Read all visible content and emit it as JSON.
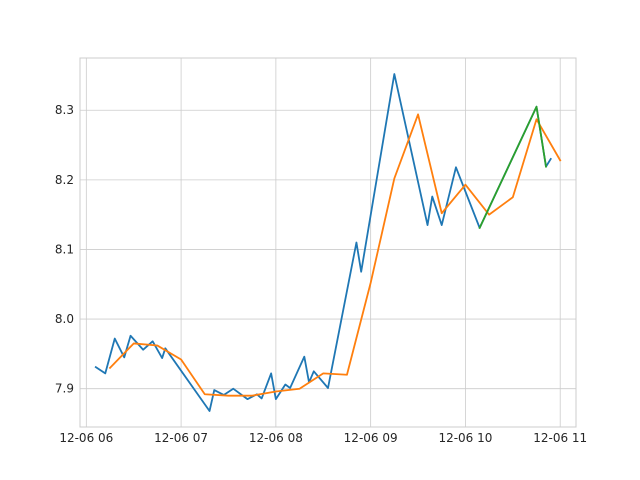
{
  "chart_data": {
    "type": "line",
    "title": "",
    "xlabel": "",
    "ylabel": "",
    "grid": true,
    "xlim": [
      "2023-12-06 05:56",
      "2023-12-06 11:10"
    ],
    "ylim": [
      7.845,
      8.375
    ],
    "x_ticks": [
      {
        "value": "2023-12-06 06:00",
        "label": "12-06 06"
      },
      {
        "value": "2023-12-06 07:00",
        "label": "12-06 07"
      },
      {
        "value": "2023-12-06 08:00",
        "label": "12-06 08"
      },
      {
        "value": "2023-12-06 09:00",
        "label": "12-06 09"
      },
      {
        "value": "2023-12-06 10:00",
        "label": "12-06 10"
      },
      {
        "value": "2023-12-06 11:00",
        "label": "12-06 11"
      }
    ],
    "y_ticks": [
      {
        "value": 7.9,
        "label": "7.9"
      },
      {
        "value": 8.0,
        "label": "8.0"
      },
      {
        "value": 8.1,
        "label": "8.1"
      },
      {
        "value": 8.2,
        "label": "8.2"
      },
      {
        "value": 8.3,
        "label": "8.3"
      }
    ],
    "series": [
      {
        "color": "#1f77b4",
        "points": [
          [
            "2023-12-06 06:06",
            7.931
          ],
          [
            "2023-12-06 06:12",
            7.922
          ],
          [
            "2023-12-06 06:18",
            7.972
          ],
          [
            "2023-12-06 06:24",
            7.945
          ],
          [
            "2023-12-06 06:28",
            7.976
          ],
          [
            "2023-12-06 06:36",
            7.956
          ],
          [
            "2023-12-06 06:42",
            7.968
          ],
          [
            "2023-12-06 06:48",
            7.944
          ],
          [
            "2023-12-06 06:50",
            7.958
          ],
          [
            "2023-12-06 07:18",
            7.868
          ],
          [
            "2023-12-06 07:21",
            7.898
          ],
          [
            "2023-12-06 07:27",
            7.891
          ],
          [
            "2023-12-06 07:33",
            7.9
          ],
          [
            "2023-12-06 07:42",
            7.885
          ],
          [
            "2023-12-06 07:48",
            7.892
          ],
          [
            "2023-12-06 07:51",
            7.886
          ],
          [
            "2023-12-06 07:57",
            7.922
          ],
          [
            "2023-12-06 08:00",
            7.885
          ],
          [
            "2023-12-06 08:06",
            7.906
          ],
          [
            "2023-12-06 08:09",
            7.901
          ],
          [
            "2023-12-06 08:18",
            7.946
          ],
          [
            "2023-12-06 08:21",
            7.909
          ],
          [
            "2023-12-06 08:24",
            7.925
          ],
          [
            "2023-12-06 08:33",
            7.901
          ],
          [
            "2023-12-06 08:51",
            8.11
          ],
          [
            "2023-12-06 08:54",
            8.068
          ],
          [
            "2023-12-06 09:15",
            8.352
          ],
          [
            "2023-12-06 09:36",
            8.135
          ],
          [
            "2023-12-06 09:39",
            8.176
          ],
          [
            "2023-12-06 09:45",
            8.135
          ],
          [
            "2023-12-06 09:54",
            8.218
          ],
          [
            "2023-12-06 10:09",
            8.131
          ],
          [
            "2023-12-06 10:45",
            8.305
          ],
          [
            "2023-12-06 10:51",
            8.219
          ],
          [
            "2023-12-06 10:54",
            8.23
          ]
        ]
      },
      {
        "color": "#ff7f0e",
        "points": [
          [
            "2023-12-06 06:15",
            7.93
          ],
          [
            "2023-12-06 06:30",
            7.965
          ],
          [
            "2023-12-06 06:45",
            7.962
          ],
          [
            "2023-12-06 07:00",
            7.942
          ],
          [
            "2023-12-06 07:15",
            7.892
          ],
          [
            "2023-12-06 07:30",
            7.89
          ],
          [
            "2023-12-06 07:45",
            7.89
          ],
          [
            "2023-12-06 08:00",
            7.896
          ],
          [
            "2023-12-06 08:15",
            7.9
          ],
          [
            "2023-12-06 08:30",
            7.922
          ],
          [
            "2023-12-06 08:45",
            7.92
          ],
          [
            "2023-12-06 09:00",
            8.052
          ],
          [
            "2023-12-06 09:15",
            8.202
          ],
          [
            "2023-12-06 09:30",
            8.294
          ],
          [
            "2023-12-06 09:45",
            8.152
          ],
          [
            "2023-12-06 10:00",
            8.193
          ],
          [
            "2023-12-06 10:15",
            8.15
          ],
          [
            "2023-12-06 10:30",
            8.175
          ],
          [
            "2023-12-06 10:45",
            8.287
          ],
          [
            "2023-12-06 11:00",
            8.228
          ]
        ]
      },
      {
        "color": "#2ca02c",
        "points": [
          [
            "2023-12-06 10:09",
            8.131
          ],
          [
            "2023-12-06 10:45",
            8.305
          ],
          [
            "2023-12-06 10:51",
            8.219
          ]
        ]
      }
    ]
  }
}
